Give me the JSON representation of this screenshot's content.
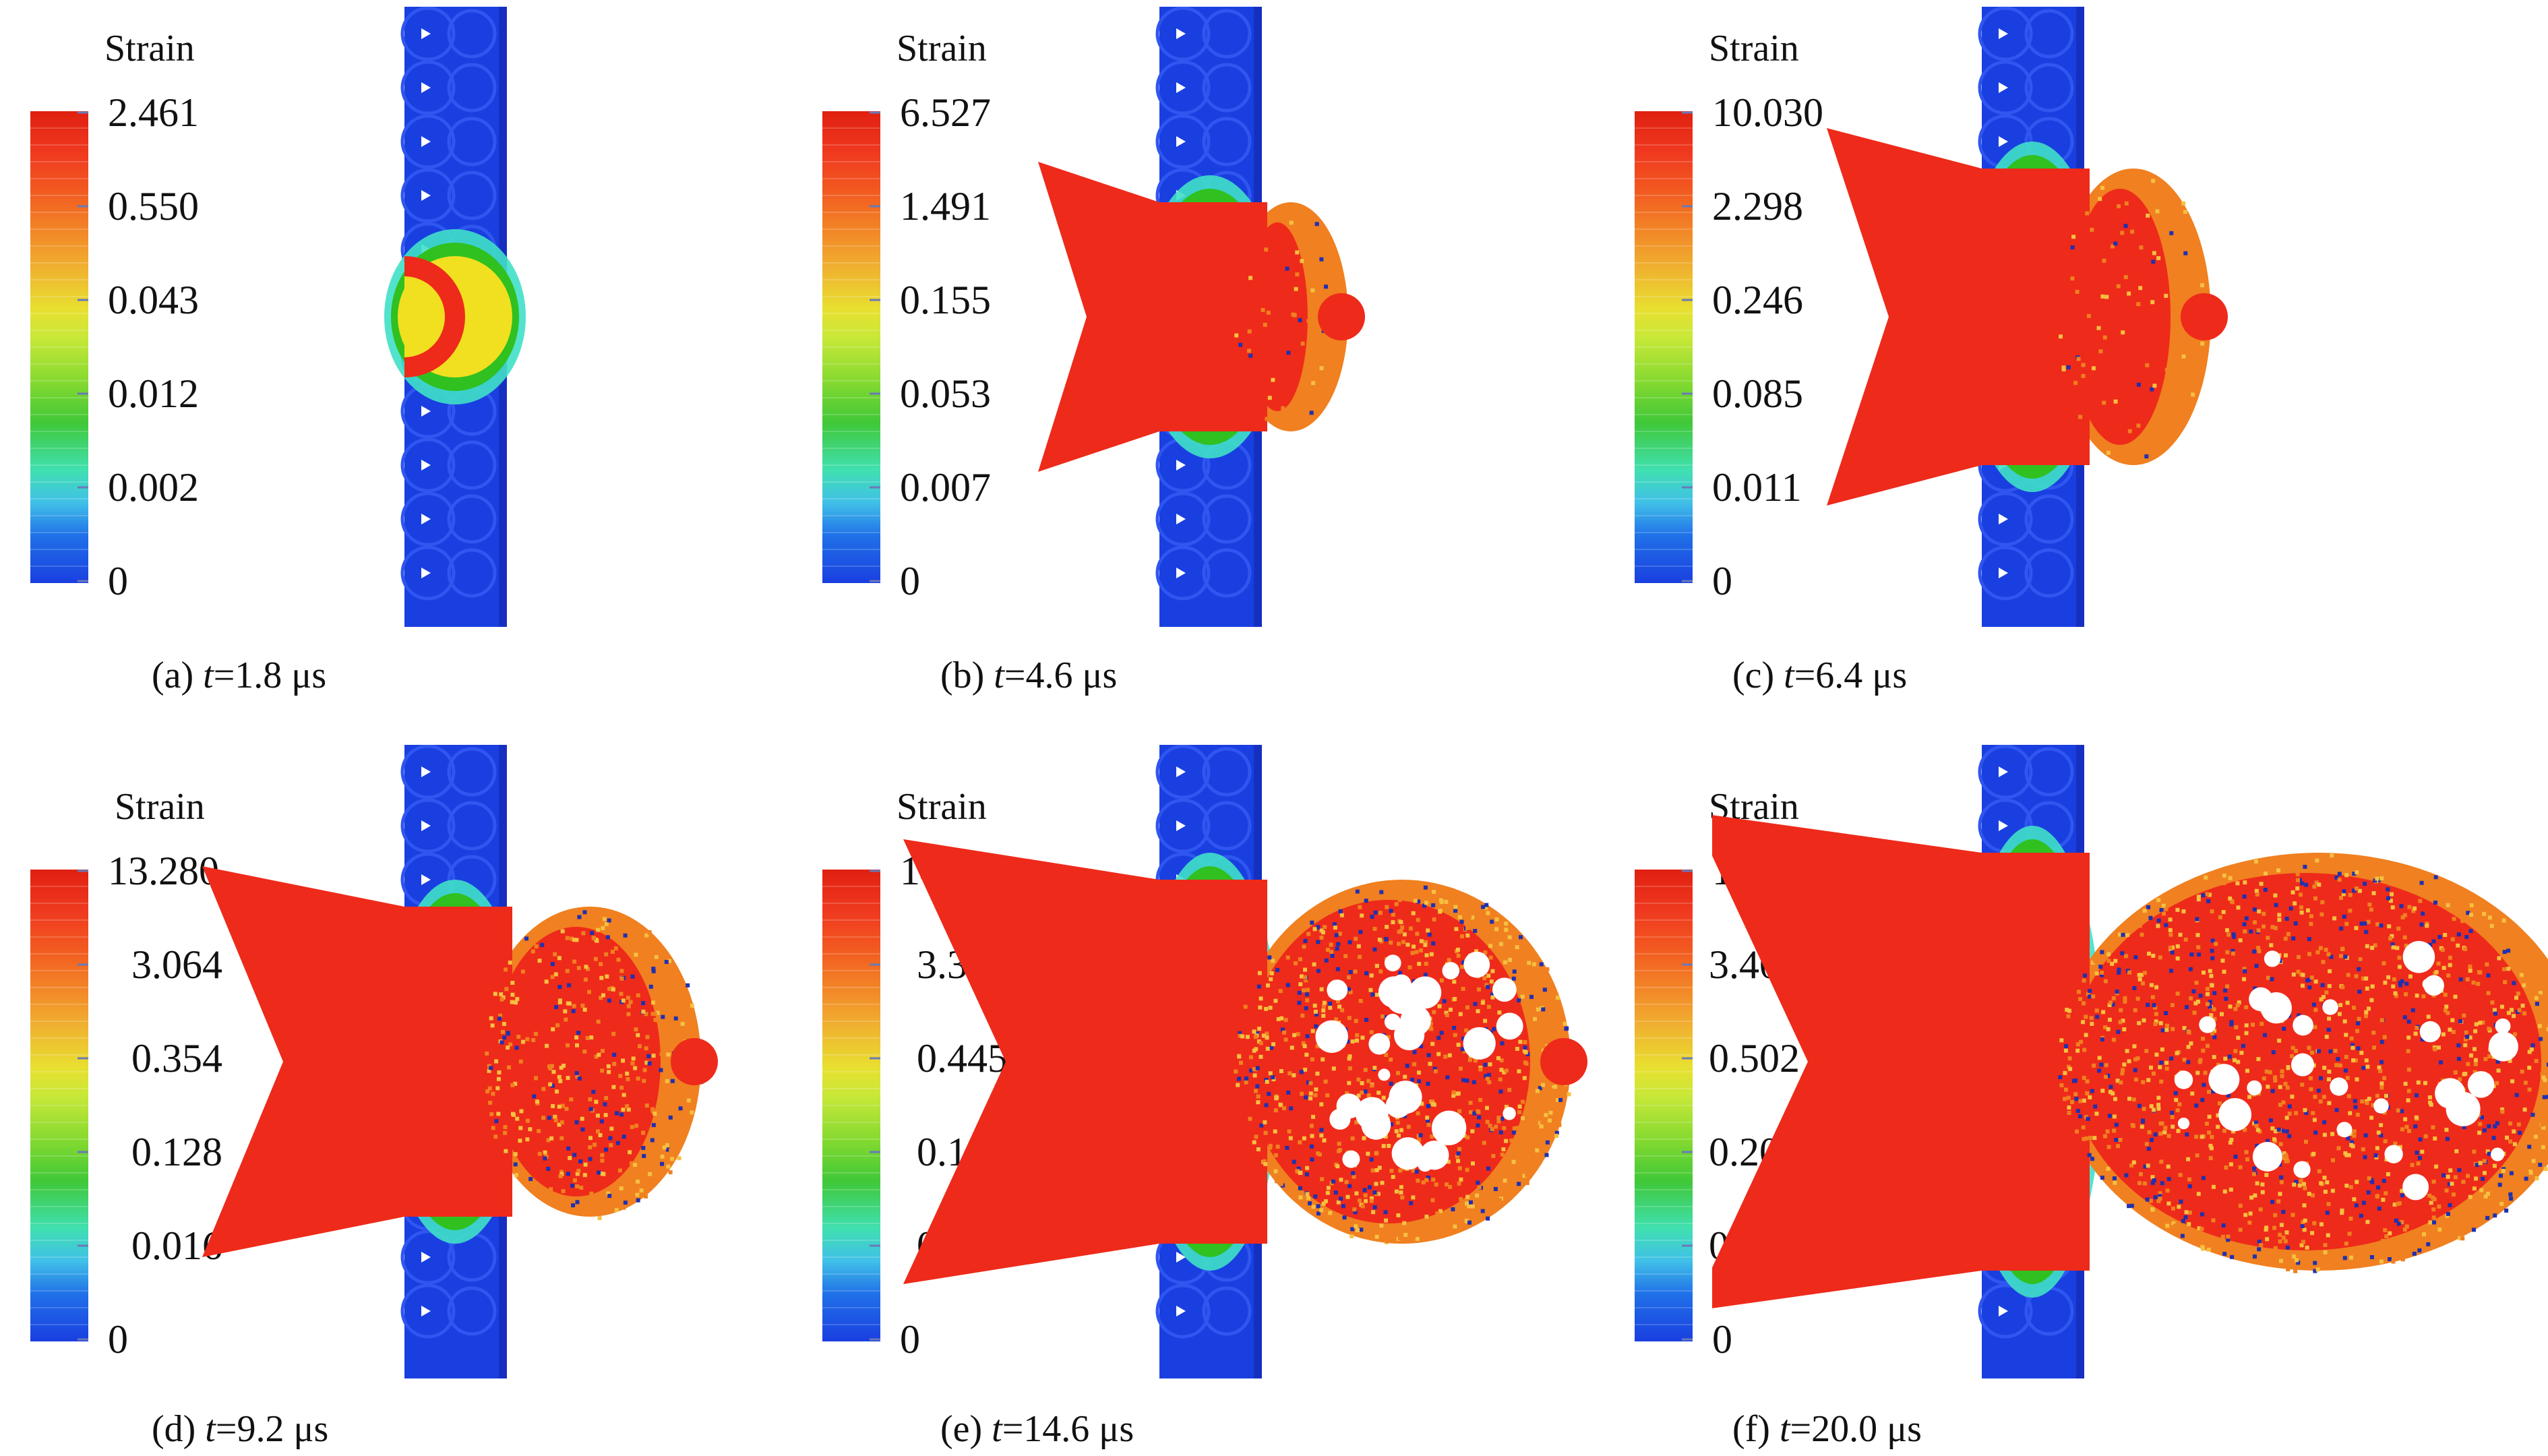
{
  "legend_title": "Strain",
  "panels": [
    {
      "label": "(a)",
      "t_var": "t",
      "t_value": "=1.8 μs",
      "ticks": [
        "2.461",
        "0.550",
        "0.043",
        "0.012",
        "0.002",
        "0"
      ]
    },
    {
      "label": "(b)",
      "t_var": "t",
      "t_value": "=4.6 μs",
      "ticks": [
        "6.527",
        "1.491",
        "0.155",
        "0.053",
        "0.007",
        "0"
      ]
    },
    {
      "label": "(c)",
      "t_var": "t",
      "t_value": "=6.4 μs",
      "ticks": [
        "10.030",
        "2.298",
        "0.246",
        "0.085",
        "0.011",
        "0"
      ]
    },
    {
      "label": "(d)",
      "t_var": "t",
      "t_value": "=9.2 μs",
      "ticks": [
        "13.280",
        "3.064",
        "0.354",
        "0.128",
        "0.016",
        "0"
      ]
    },
    {
      "label": "(e)",
      "t_var": "t",
      "t_value": "=14.6 μs",
      "ticks": [
        "14.320",
        "3.355",
        "0.445",
        "0.171",
        "0.021",
        "0"
      ]
    },
    {
      "label": "(f)",
      "t_var": "t",
      "t_value": "=20.0 μs",
      "ticks": [
        "14.320",
        "3.400",
        "0.502",
        "0.200",
        "0.025",
        "0"
      ]
    }
  ],
  "colors": {
    "blue": "#1a3fe0",
    "light_blue": "#20b0f0",
    "cyan": "#40e0c8",
    "green": "#30c020",
    "yellow_green": "#b8e020",
    "yellow": "#f0e020",
    "orange": "#f08020",
    "red": "#ee2a1a",
    "dark_blue_fragment": "#2030b0"
  }
}
